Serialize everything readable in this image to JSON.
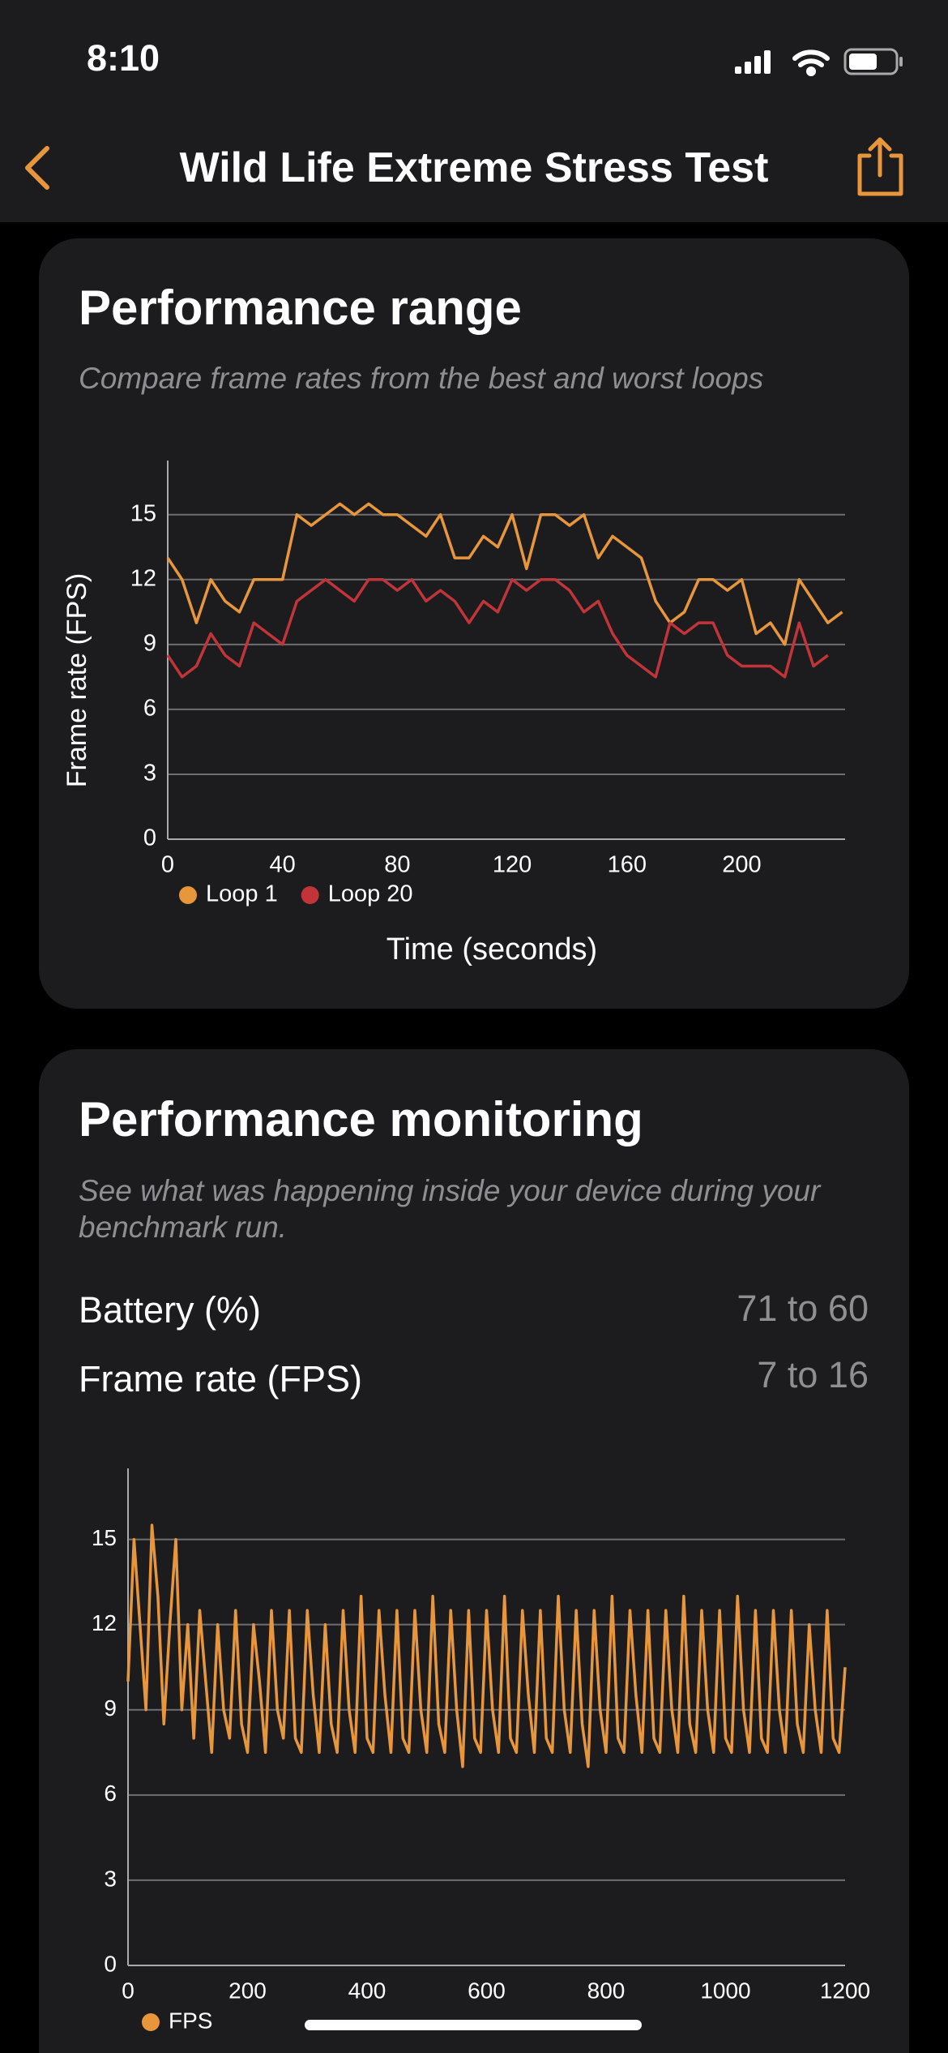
{
  "status_bar": {
    "time": "8:10"
  },
  "nav": {
    "title": "Wild Life Extreme Stress Test"
  },
  "sections": [
    {
      "title": "Performance range",
      "subtitle": "Compare frame rates from the best and worst loops"
    },
    {
      "title": "Performance monitoring",
      "subtitle": "See what was happening inside your device during your benchmark run.",
      "stats": [
        {
          "label": "Battery (%)",
          "value": "71 to 60"
        },
        {
          "label": "Frame rate (FPS)",
          "value": "7 to 16"
        }
      ]
    }
  ],
  "chart_data": [
    {
      "type": "line",
      "x_label": "Time (seconds)",
      "y_label": "Frame rate (FPS)",
      "x": [
        0,
        5,
        10,
        15,
        20,
        25,
        30,
        35,
        40,
        45,
        50,
        55,
        60,
        65,
        70,
        75,
        80,
        85,
        90,
        95,
        100,
        105,
        110,
        115,
        120,
        125,
        130,
        135,
        140,
        145,
        150,
        155,
        160,
        165,
        170,
        175,
        180,
        185,
        190,
        195,
        200,
        205,
        210,
        215,
        220,
        225,
        230,
        235
      ],
      "series": [
        {
          "name": "Loop 1",
          "color": "#e8963c",
          "values": [
            13,
            12,
            10,
            12,
            11,
            10.5,
            12,
            12,
            12,
            15,
            14.5,
            15,
            15.5,
            15,
            15.5,
            15,
            15,
            14.5,
            14,
            15,
            13,
            13,
            14,
            13.5,
            15,
            12.5,
            15,
            15,
            14.5,
            15,
            13,
            14,
            13.5,
            13,
            11,
            10,
            10.5,
            12,
            12,
            11.5,
            12,
            9.5,
            10,
            9,
            12,
            11,
            10,
            10.5
          ]
        },
        {
          "name": "Loop 20",
          "color": "#c0343a",
          "values": [
            8.5,
            7.5,
            8,
            9.5,
            8.5,
            8,
            10,
            9.5,
            9,
            11,
            11.5,
            12,
            11.5,
            11,
            12,
            12,
            11.5,
            12,
            11,
            11.5,
            11,
            10,
            11,
            10.5,
            12,
            11.5,
            12,
            12,
            11.5,
            10.5,
            11,
            9.5,
            8.5,
            8,
            7.5,
            10,
            9.5,
            10,
            10,
            8.5,
            8,
            8,
            8,
            7.5,
            10,
            8,
            8.5,
            null
          ]
        }
      ],
      "xlim": [
        0,
        236
      ],
      "ylim": [
        0,
        17.5
      ],
      "xticks": [
        0,
        40,
        80,
        120,
        160,
        200
      ],
      "yticks": [
        0,
        3,
        6,
        9,
        12,
        15
      ],
      "grid": true,
      "legend": "bottom"
    },
    {
      "type": "line",
      "x": [
        0,
        10,
        20,
        30,
        40,
        50,
        60,
        70,
        80,
        90,
        100,
        110,
        120,
        130,
        140,
        150,
        160,
        170,
        180,
        190,
        200,
        210,
        220,
        230,
        240,
        250,
        260,
        270,
        280,
        290,
        300,
        310,
        320,
        330,
        340,
        350,
        360,
        370,
        380,
        390,
        400,
        410,
        420,
        430,
        440,
        450,
        460,
        470,
        480,
        490,
        500,
        510,
        520,
        530,
        540,
        550,
        560,
        570,
        580,
        590,
        600,
        610,
        620,
        630,
        640,
        650,
        660,
        670,
        680,
        690,
        700,
        710,
        720,
        730,
        740,
        750,
        760,
        770,
        780,
        790,
        800,
        810,
        820,
        830,
        840,
        850,
        860,
        870,
        880,
        890,
        900,
        910,
        920,
        930,
        940,
        950,
        960,
        970,
        980,
        990,
        1000,
        1010,
        1020,
        1030,
        1040,
        1050,
        1060,
        1070,
        1080,
        1090,
        1100,
        1110,
        1120,
        1130,
        1140,
        1150,
        1160,
        1170,
        1180,
        1190,
        1200
      ],
      "series": [
        {
          "name": "FPS",
          "color": "#e8963c",
          "values": [
            10,
            15,
            12,
            9,
            15.5,
            13,
            8.5,
            12,
            15,
            9,
            12,
            8,
            12.5,
            10,
            7.5,
            12,
            9,
            8,
            12.5,
            8.5,
            7.5,
            12,
            10,
            7.5,
            12.5,
            9,
            8,
            12.5,
            8,
            7.5,
            12.5,
            9.5,
            7.5,
            12,
            8.5,
            7.5,
            12.5,
            9,
            7.5,
            13,
            8,
            7.5,
            12.5,
            9.5,
            7.5,
            12.5,
            8,
            7.5,
            12.5,
            9,
            7.5,
            13,
            8.5,
            7.5,
            12.5,
            9,
            7,
            12.5,
            8,
            7.5,
            12.5,
            9,
            7.5,
            13,
            8,
            7.5,
            12.5,
            9.5,
            7.5,
            12.5,
            8,
            7.5,
            13,
            9,
            7.5,
            12.5,
            8.5,
            7,
            12.5,
            9,
            7.5,
            13,
            8,
            7.5,
            12.5,
            9.5,
            7.5,
            12.5,
            8,
            7.5,
            12.5,
            9,
            7.5,
            13,
            8.5,
            7.5,
            12.5,
            9,
            7.5,
            12.5,
            8,
            7.5,
            13,
            9,
            7.5,
            12.5,
            8,
            7.5,
            12.5,
            9,
            7.5,
            12.5,
            8.5,
            7.5,
            12,
            9,
            7.5,
            12.5,
            8,
            7.5,
            10.5
          ]
        }
      ],
      "xlim": [
        0,
        1200
      ],
      "ylim": [
        0,
        17.5
      ],
      "xticks": [
        0,
        200,
        400,
        600,
        800,
        1000,
        1200
      ],
      "yticks": [
        0,
        3,
        6,
        9,
        12,
        15
      ],
      "grid": true,
      "legend": "bottom"
    }
  ]
}
